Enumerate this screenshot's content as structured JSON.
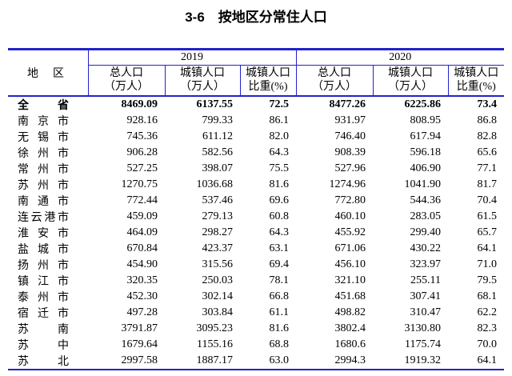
{
  "title": "3-6　按地区分常住人口",
  "line_color": "#2222cc",
  "table": {
    "region_header": "地区",
    "year_groups": [
      "2019",
      "2020"
    ],
    "col_headers": [
      {
        "line1": "总人口",
        "line2": "（万人）"
      },
      {
        "line1": "城镇人口",
        "line2": "（万人）"
      },
      {
        "line1": "城镇人口",
        "line2": "比重(%)"
      }
    ],
    "rows": [
      {
        "region": "全省",
        "emphasis": true,
        "values": [
          "8469.09",
          "6137.55",
          "72.5",
          "8477.26",
          "6225.86",
          "73.4"
        ]
      },
      {
        "region": "南京市",
        "emphasis": false,
        "values": [
          "928.16",
          "799.33",
          "86.1",
          "931.97",
          "808.95",
          "86.8"
        ]
      },
      {
        "region": "无锡市",
        "emphasis": false,
        "values": [
          "745.36",
          "611.12",
          "82.0",
          "746.40",
          "617.94",
          "82.8"
        ]
      },
      {
        "region": "徐州市",
        "emphasis": false,
        "values": [
          "906.28",
          "582.56",
          "64.3",
          "908.39",
          "596.18",
          "65.6"
        ]
      },
      {
        "region": "常州市",
        "emphasis": false,
        "values": [
          "527.25",
          "398.07",
          "75.5",
          "527.96",
          "406.90",
          "77.1"
        ]
      },
      {
        "region": "苏州市",
        "emphasis": false,
        "values": [
          "1270.75",
          "1036.68",
          "81.6",
          "1274.96",
          "1041.90",
          "81.7"
        ]
      },
      {
        "region": "南通市",
        "emphasis": false,
        "values": [
          "772.44",
          "537.46",
          "69.6",
          "772.80",
          "544.36",
          "70.4"
        ]
      },
      {
        "region": "连云港市",
        "emphasis": false,
        "values": [
          "459.09",
          "279.13",
          "60.8",
          "460.10",
          "283.05",
          "61.5"
        ]
      },
      {
        "region": "淮安市",
        "emphasis": false,
        "values": [
          "464.09",
          "298.27",
          "64.3",
          "455.92",
          "299.40",
          "65.7"
        ]
      },
      {
        "region": "盐城市",
        "emphasis": false,
        "values": [
          "670.84",
          "423.37",
          "63.1",
          "671.06",
          "430.22",
          "64.1"
        ]
      },
      {
        "region": "扬州市",
        "emphasis": false,
        "values": [
          "454.90",
          "315.56",
          "69.4",
          "456.10",
          "323.97",
          "71.0"
        ]
      },
      {
        "region": "镇江市",
        "emphasis": false,
        "values": [
          "320.35",
          "250.03",
          "78.1",
          "321.10",
          "255.11",
          "79.5"
        ]
      },
      {
        "region": "泰州市",
        "emphasis": false,
        "values": [
          "452.30",
          "302.14",
          "66.8",
          "451.68",
          "307.41",
          "68.1"
        ]
      },
      {
        "region": "宿迁市",
        "emphasis": false,
        "values": [
          "497.28",
          "303.84",
          "61.1",
          "498.82",
          "310.47",
          "62.2"
        ]
      },
      {
        "region": "苏南",
        "emphasis": false,
        "values": [
          "3791.87",
          "3095.23",
          "81.6",
          "3802.4",
          "3130.80",
          "82.3"
        ]
      },
      {
        "region": "苏中",
        "emphasis": false,
        "values": [
          "1679.64",
          "1155.16",
          "68.8",
          "1680.6",
          "1175.74",
          "70.0"
        ]
      },
      {
        "region": "苏北",
        "emphasis": false,
        "values": [
          "2997.58",
          "1887.17",
          "63.0",
          "2994.3",
          "1919.32",
          "64.1"
        ]
      }
    ]
  }
}
